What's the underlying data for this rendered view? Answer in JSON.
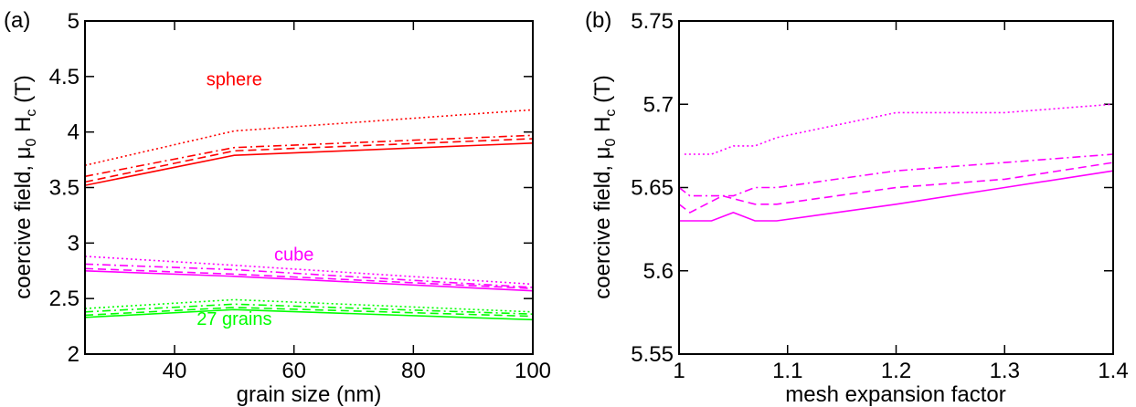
{
  "figure": {
    "panels": [
      {
        "tag": "(a)",
        "x_title": "grain size (nm)",
        "y_title_main": "coercive field, μ",
        "y_title_sub0": "0",
        "y_title_mid": " H",
        "y_title_subc": "c",
        "y_title_end": " (T)"
      },
      {
        "tag": "(b)",
        "x_title": "mesh expansion factor",
        "y_title_main": "coercive field, μ",
        "y_title_sub0": "0",
        "y_title_mid": " H",
        "y_title_subc": "c",
        "y_title_end": " (T)"
      }
    ]
  },
  "chart_data": [
    {
      "type": "line",
      "panel": "(a)",
      "xlabel": "grain size (nm)",
      "ylabel": "coercive field, μ0 Hc (T)",
      "xlim": [
        25,
        100
      ],
      "ylim": [
        2,
        5
      ],
      "xticks": [
        40,
        60,
        80,
        100
      ],
      "yticks": [
        2,
        2.5,
        3,
        3.5,
        4,
        4.5,
        5
      ],
      "ytick_labels": [
        "2",
        "2.5",
        "3",
        "3.5",
        "4",
        "4.5",
        "5"
      ],
      "grid": false,
      "annotations": [
        {
          "text": "sphere",
          "color": "#ff0000",
          "x": 50,
          "y": 4.48
        },
        {
          "text": "cube",
          "color": "#ff00ff",
          "x": 60,
          "y": 2.9
        },
        {
          "text": "27 grains",
          "color": "#00ff00",
          "x": 50,
          "y": 2.32
        }
      ],
      "series": [
        {
          "group": "sphere",
          "color": "#ff0000",
          "dash": "dotted",
          "x": [
            25,
            50,
            100
          ],
          "y": [
            3.7,
            4.01,
            4.2
          ]
        },
        {
          "group": "sphere",
          "color": "#ff0000",
          "dash": "dashdot",
          "x": [
            25,
            50,
            100
          ],
          "y": [
            3.6,
            3.86,
            3.97
          ]
        },
        {
          "group": "sphere",
          "color": "#ff0000",
          "dash": "dashed",
          "x": [
            25,
            50,
            100
          ],
          "y": [
            3.55,
            3.83,
            3.94
          ]
        },
        {
          "group": "sphere",
          "color": "#ff0000",
          "dash": "solid",
          "x": [
            25,
            50,
            100
          ],
          "y": [
            3.52,
            3.79,
            3.9
          ]
        },
        {
          "group": "cube",
          "color": "#ff00ff",
          "dash": "dotted",
          "x": [
            25,
            50,
            100
          ],
          "y": [
            2.88,
            2.8,
            2.63
          ]
        },
        {
          "group": "cube",
          "color": "#ff00ff",
          "dash": "dashdot",
          "x": [
            25,
            50,
            100
          ],
          "y": [
            2.81,
            2.76,
            2.6
          ]
        },
        {
          "group": "cube",
          "color": "#ff00ff",
          "dash": "dashed",
          "x": [
            25,
            50,
            100
          ],
          "y": [
            2.77,
            2.72,
            2.59
          ]
        },
        {
          "group": "cube",
          "color": "#ff00ff",
          "dash": "solid",
          "x": [
            25,
            50,
            100
          ],
          "y": [
            2.75,
            2.7,
            2.57
          ]
        },
        {
          "group": "27 grains",
          "color": "#00ff00",
          "dash": "dotted",
          "x": [
            25,
            50,
            100
          ],
          "y": [
            2.41,
            2.49,
            2.38
          ]
        },
        {
          "group": "27 grains",
          "color": "#00ff00",
          "dash": "dashdot",
          "x": [
            25,
            50,
            100
          ],
          "y": [
            2.38,
            2.45,
            2.36
          ]
        },
        {
          "group": "27 grains",
          "color": "#00ff00",
          "dash": "dashed",
          "x": [
            25,
            50,
            100
          ],
          "y": [
            2.35,
            2.42,
            2.34
          ]
        },
        {
          "group": "27 grains",
          "color": "#00ff00",
          "dash": "solid",
          "x": [
            25,
            50,
            100
          ],
          "y": [
            2.33,
            2.4,
            2.31
          ]
        }
      ]
    },
    {
      "type": "line",
      "panel": "(b)",
      "xlabel": "mesh expansion factor",
      "ylabel": "coercive field, μ0 Hc (T)",
      "xlim": [
        1,
        1.4
      ],
      "ylim": [
        5.55,
        5.75
      ],
      "xticks": [
        1,
        1.1,
        1.2,
        1.3,
        1.4
      ],
      "xtick_labels": [
        "1",
        "1.1",
        "1.2",
        "1.3",
        "1.4"
      ],
      "yticks": [
        5.55,
        5.6,
        5.65,
        5.7,
        5.75
      ],
      "ytick_labels": [
        "5.55",
        "5.6",
        "5.65",
        "5.7",
        "5.75"
      ],
      "grid": false,
      "series": [
        {
          "color": "#ff00ff",
          "dash": "dotted",
          "x": [
            1.005,
            1.02,
            1.03,
            1.05,
            1.06,
            1.07,
            1.09,
            1.2,
            1.3,
            1.4
          ],
          "y": [
            5.67,
            5.67,
            5.67,
            5.675,
            5.675,
            5.675,
            5.68,
            5.695,
            5.695,
            5.7
          ]
        },
        {
          "color": "#ff00ff",
          "dash": "dashdot",
          "x": [
            1.0,
            1.01,
            1.03,
            1.05,
            1.07,
            1.09,
            1.2,
            1.3,
            1.4
          ],
          "y": [
            5.65,
            5.645,
            5.645,
            5.645,
            5.65,
            5.65,
            5.66,
            5.665,
            5.67
          ]
        },
        {
          "color": "#ff00ff",
          "dash": "dashed",
          "x": [
            1.0,
            1.01,
            1.04,
            1.07,
            1.09,
            1.2,
            1.3,
            1.4
          ],
          "y": [
            5.64,
            5.635,
            5.645,
            5.64,
            5.64,
            5.65,
            5.655,
            5.665
          ]
        },
        {
          "color": "#ff00ff",
          "dash": "solid",
          "x": [
            1.0,
            1.03,
            1.05,
            1.07,
            1.09,
            1.2,
            1.3,
            1.4
          ],
          "y": [
            5.63,
            5.63,
            5.635,
            5.63,
            5.63,
            5.64,
            5.65,
            5.66
          ]
        }
      ]
    }
  ]
}
